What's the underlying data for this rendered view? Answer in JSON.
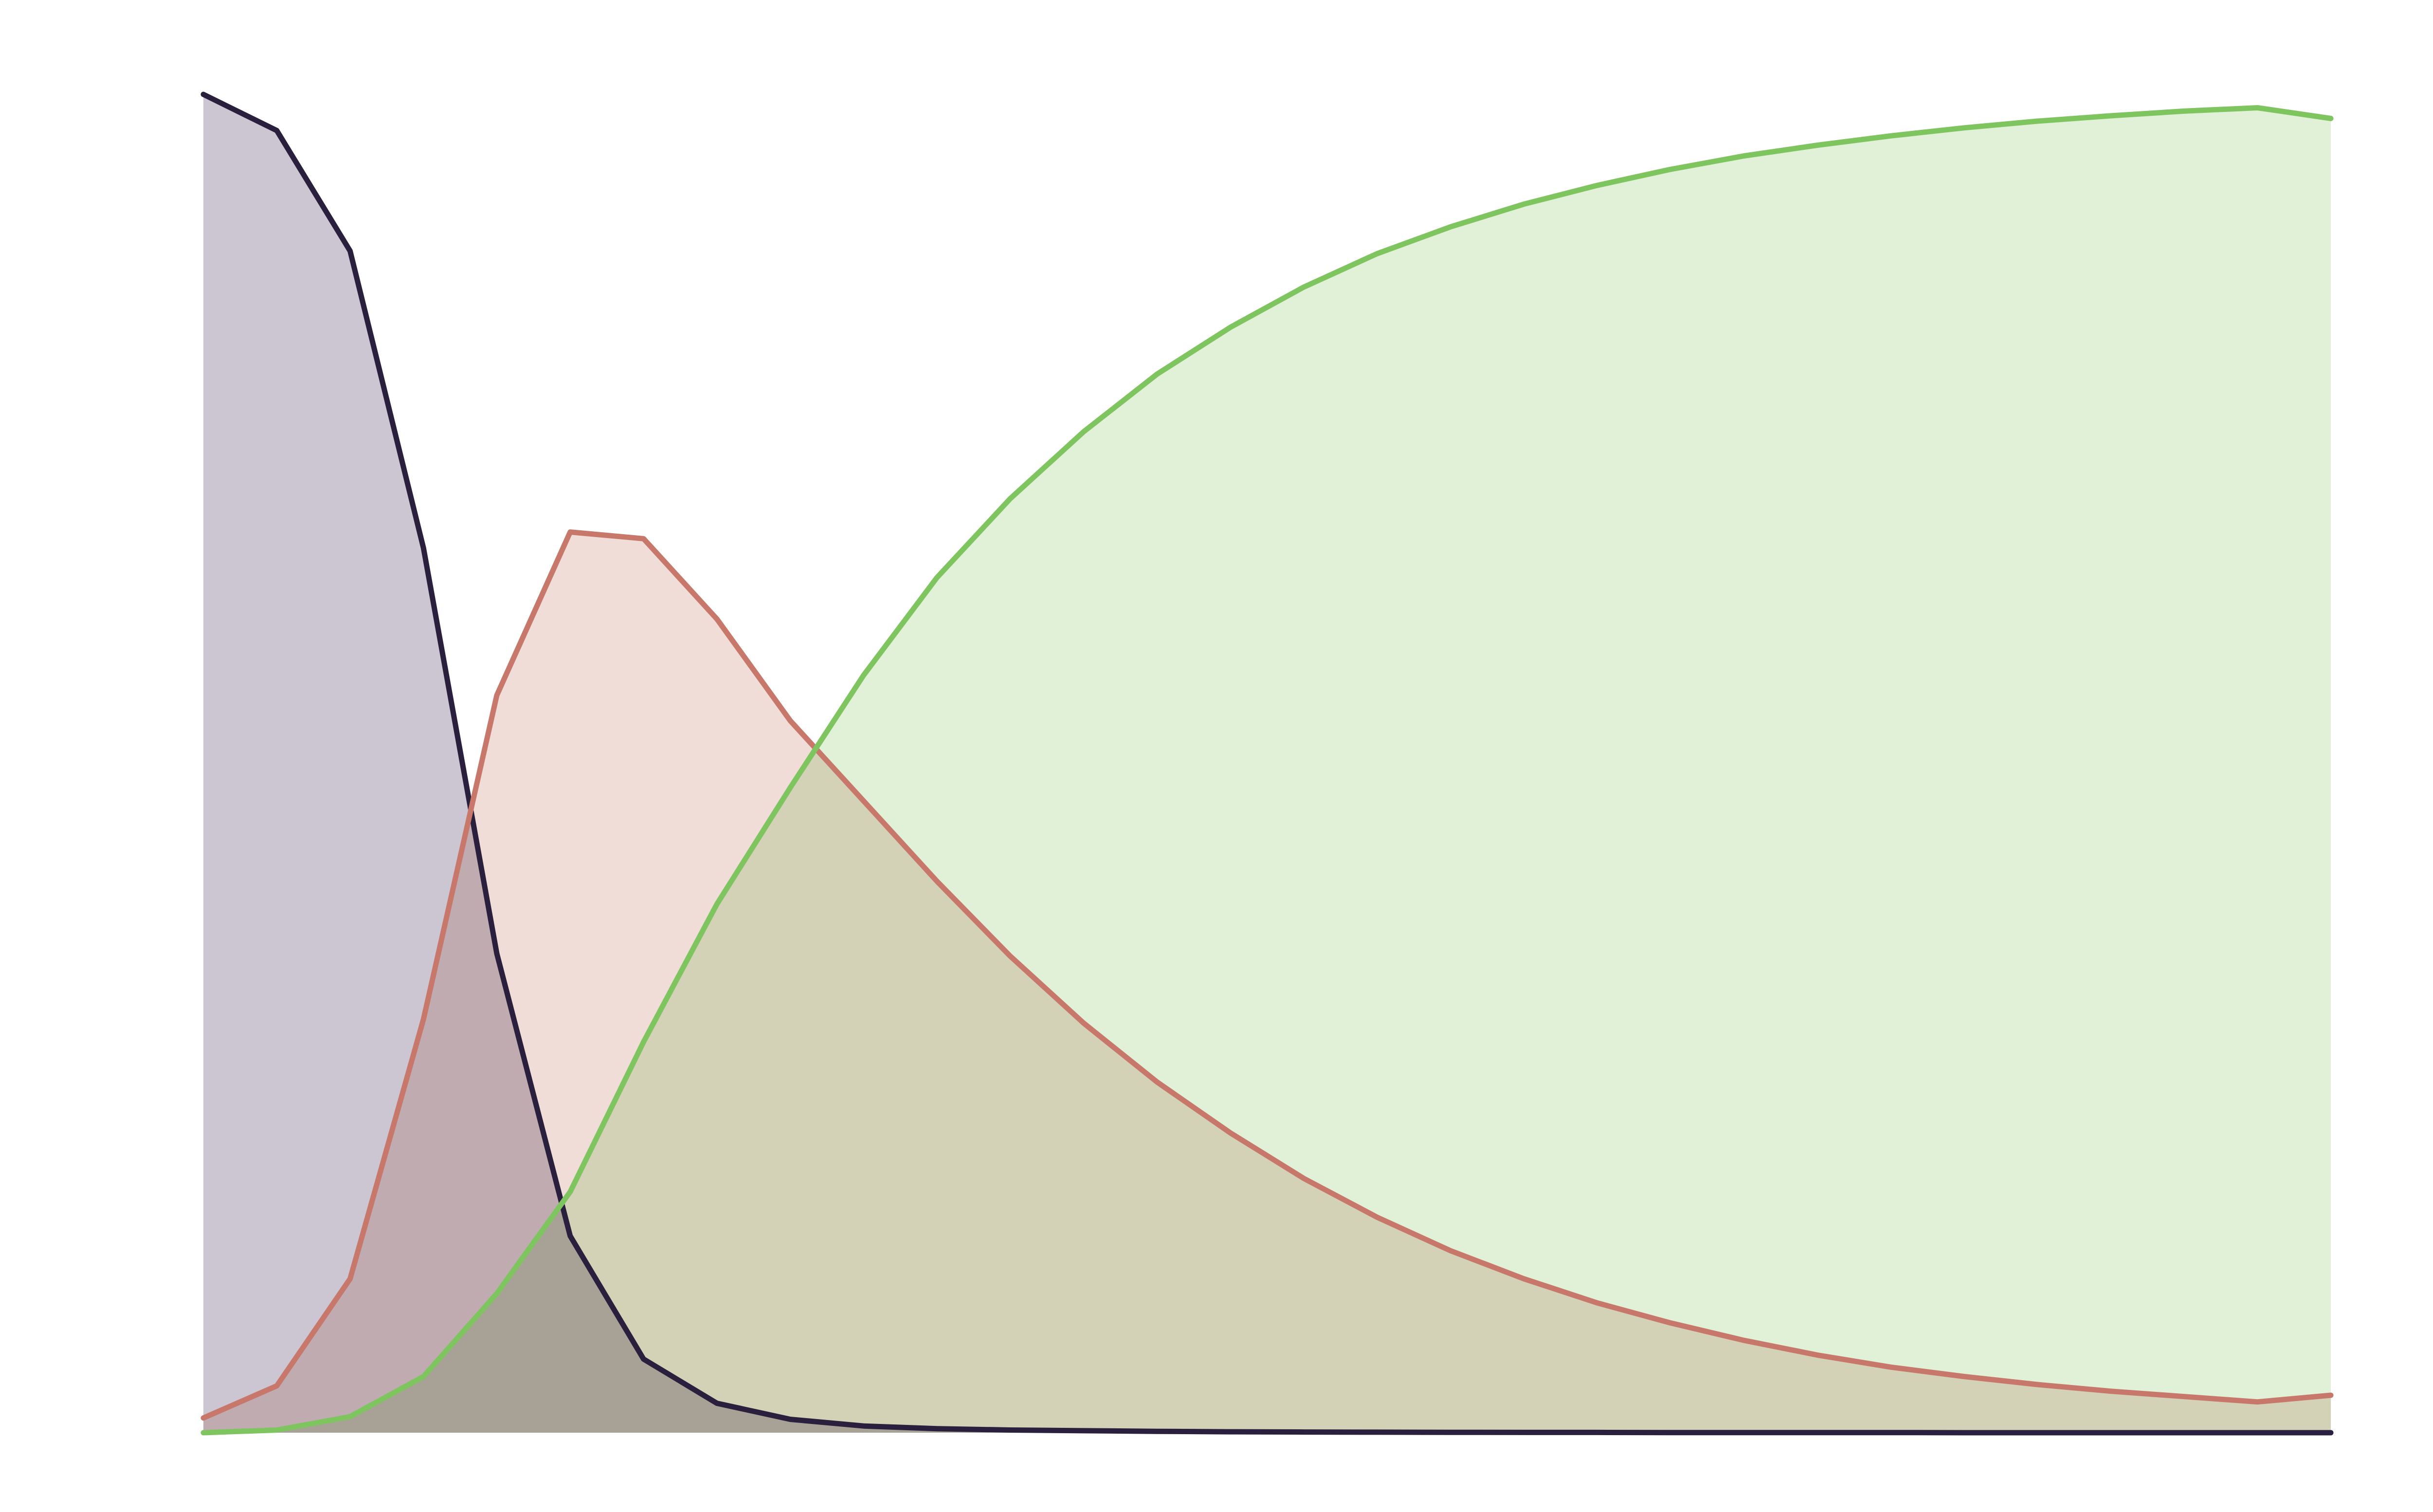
{
  "chart_data": {
    "type": "area",
    "title": "",
    "xlabel": "",
    "ylabel": "",
    "x": [
      0,
      1,
      2,
      3,
      4,
      5,
      6,
      7,
      8,
      9,
      10,
      11,
      12,
      13,
      14,
      15,
      16,
      17,
      18,
      19,
      20,
      21,
      22,
      23,
      24,
      25,
      26,
      27,
      28,
      29
    ],
    "xlim": [
      0,
      29
    ],
    "ylim": [
      0,
      1
    ],
    "grid": false,
    "legend": "none",
    "series": [
      {
        "color": "#2a1f3d",
        "fill": "#c2bcc9",
        "values": [
          1.0,
          0.973,
          0.883,
          0.661,
          0.358,
          0.147,
          0.055,
          0.022,
          0.01,
          0.005,
          0.003,
          0.002,
          0.0015,
          0.001,
          0.0007,
          0.0005,
          0.0004,
          0.0003,
          0.0002,
          0.0002,
          0.0001,
          0.0001,
          0.0001,
          0.0001,
          0.0,
          0.0,
          0.0,
          0.0,
          0.0,
          0.0
        ]
      },
      {
        "color": "#c7786a",
        "fill": "#eed7d1",
        "values": [
          0.011,
          0.035,
          0.115,
          0.309,
          0.551,
          0.673,
          0.668,
          0.608,
          0.532,
          0.472,
          0.412,
          0.356,
          0.306,
          0.262,
          0.224,
          0.19,
          0.161,
          0.136,
          0.115,
          0.097,
          0.082,
          0.069,
          0.058,
          0.049,
          0.042,
          0.036,
          0.031,
          0.027,
          0.023,
          0.028
        ]
      },
      {
        "color": "#7fc55f",
        "fill": "#daefd0",
        "values": [
          0.0,
          0.002,
          0.012,
          0.042,
          0.104,
          0.18,
          0.292,
          0.395,
          0.482,
          0.566,
          0.639,
          0.698,
          0.748,
          0.791,
          0.826,
          0.856,
          0.881,
          0.901,
          0.918,
          0.932,
          0.944,
          0.954,
          0.962,
          0.969,
          0.975,
          0.98,
          0.984,
          0.9875,
          0.99,
          0.982
        ]
      }
    ]
  }
}
